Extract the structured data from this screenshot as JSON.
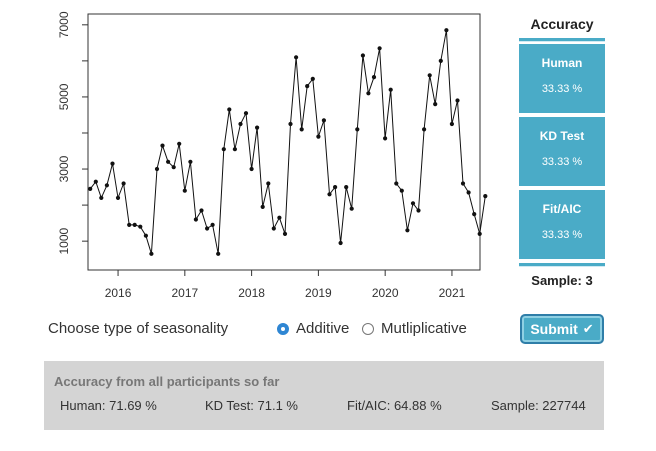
{
  "chart_data": {
    "type": "line",
    "x_ticks": [
      "2016",
      "2017",
      "2018",
      "2019",
      "2020",
      "2021"
    ],
    "y_ticks": [
      1000,
      3000,
      5000,
      7000
    ],
    "xlim": [
      2015.55,
      2021.42
    ],
    "ylim": [
      200,
      7300
    ],
    "x_start": 2015.583,
    "x_step": 0.08333,
    "series": [
      {
        "values": [
          2450,
          2650,
          2200,
          2550,
          3150,
          2200,
          2600,
          1450,
          1450,
          1400,
          1150,
          650,
          3000,
          3650,
          3200,
          3050,
          3700,
          2400,
          3200,
          1600,
          1850,
          1350,
          1450,
          650,
          3550,
          4650,
          3550,
          4250,
          4550,
          3000,
          4150,
          1950,
          2600,
          1350,
          1650,
          1200,
          4250,
          6100,
          4100,
          5300,
          5500,
          3900,
          4350,
          2300,
          2500,
          950,
          2500,
          1900,
          4100,
          6150,
          5100,
          5550,
          6350,
          3850,
          5200,
          2600,
          2400,
          1300,
          2050,
          1850,
          4100,
          5600,
          4800,
          6000,
          6850,
          4250,
          4900,
          2600,
          2350,
          1750,
          1200,
          2250
        ]
      }
    ]
  },
  "accuracy": {
    "title": "Accuracy",
    "items": [
      {
        "label": "Human",
        "value": "33.33 %"
      },
      {
        "label": "KD Test",
        "value": "33.33 %"
      },
      {
        "label": "Fit/AIC",
        "value": "33.33 %"
      }
    ],
    "sample": "Sample: 3"
  },
  "seasonality": {
    "label": "Choose type of seasonality",
    "options": [
      {
        "label": "Additive",
        "checked": true
      },
      {
        "label": "Mutliplicative",
        "checked": false
      }
    ]
  },
  "submit_label": "Submit",
  "submit_icon": "check-icon",
  "summary": {
    "title": "Accuracy from all participants so far",
    "human": "Human: 71.69 %",
    "kd": "KD Test: 71.1 %",
    "fit": "Fit/AIC: 64.88 %",
    "sample": "Sample: 227744"
  },
  "colors": {
    "accent": "#4aabc7",
    "radio_checked": "#2f86d3",
    "summary_bg": "#d4d4d4"
  }
}
